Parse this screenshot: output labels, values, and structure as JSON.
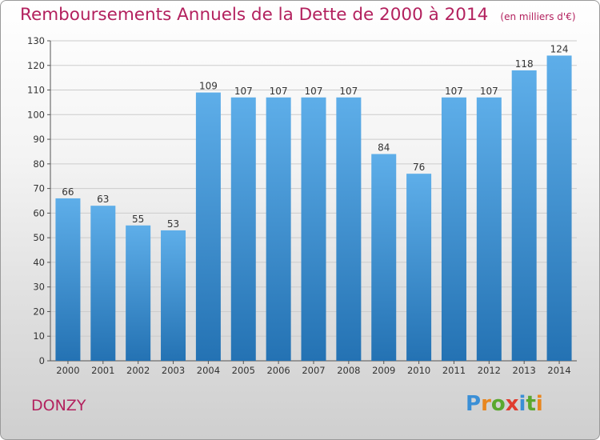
{
  "title": "Remboursements Annuels de la Dette de 2000 à 2014",
  "unit": "(en milliers d'€)",
  "commune": "DONZY",
  "logo": {
    "letters": [
      {
        "ch": "P",
        "color": "#3b8fd6"
      },
      {
        "ch": "r",
        "color": "#e8861e"
      },
      {
        "ch": "o",
        "color": "#5aa82e"
      },
      {
        "ch": "x",
        "color": "#e03c2f"
      },
      {
        "ch": "i",
        "color": "#3b8fd6"
      },
      {
        "ch": "t",
        "color": "#5aa82e"
      },
      {
        "ch": "i",
        "color": "#e8861e"
      }
    ]
  },
  "colors": {
    "title": "#b3215e",
    "bar_top": "#5eaee9",
    "bar_bottom": "#2472b3"
  },
  "chart_data": {
    "type": "bar",
    "title": "Remboursements Annuels de la Dette de 2000 à 2014",
    "categories": [
      "2000",
      "2001",
      "2002",
      "2003",
      "2004",
      "2005",
      "2006",
      "2007",
      "2008",
      "2009",
      "2010",
      "2011",
      "2012",
      "2013",
      "2014"
    ],
    "values": [
      66,
      63,
      55,
      53,
      109,
      107,
      107,
      107,
      107,
      84,
      76,
      107,
      107,
      118,
      124
    ],
    "ylim": [
      0,
      130
    ],
    "yticks": [
      0,
      10,
      20,
      30,
      40,
      50,
      60,
      70,
      80,
      90,
      100,
      110,
      120,
      130
    ],
    "grid": true,
    "xlabel": "",
    "ylabel": ""
  }
}
